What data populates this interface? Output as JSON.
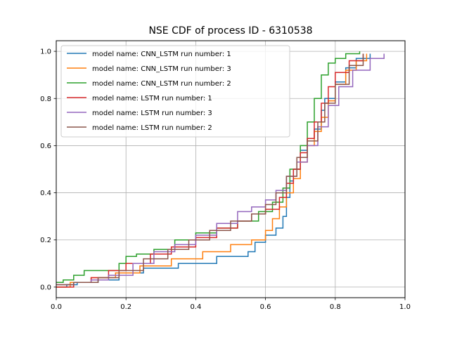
{
  "chart_data": {
    "type": "line",
    "title": "NSE CDF of process ID - 6310538",
    "xlabel": "",
    "ylabel": "",
    "xlim": [
      0.0,
      1.0
    ],
    "ylim": [
      -0.045,
      1.045
    ],
    "xticks": [
      "0.0",
      "0.2",
      "0.4",
      "0.6",
      "0.8",
      "1.0"
    ],
    "yticks": [
      "0.0",
      "0.2",
      "0.4",
      "0.6",
      "0.8",
      "1.0"
    ],
    "grid": true,
    "legend_position": "top-left",
    "series": [
      {
        "name": "model name: CNN_LSTM run number: 1",
        "color": "#1f77b4",
        "x": [
          0.0,
          0.03,
          0.06,
          0.12,
          0.18,
          0.25,
          0.35,
          0.46,
          0.55,
          0.57,
          0.6,
          0.63,
          0.65,
          0.66,
          0.67,
          0.68,
          0.7,
          0.72,
          0.74,
          0.76,
          0.77,
          0.8,
          0.83,
          0.86,
          0.9
        ],
        "y": [
          0.0,
          0.01,
          0.02,
          0.03,
          0.06,
          0.08,
          0.1,
          0.13,
          0.15,
          0.19,
          0.22,
          0.25,
          0.3,
          0.38,
          0.45,
          0.5,
          0.58,
          0.63,
          0.67,
          0.75,
          0.8,
          0.87,
          0.93,
          0.97,
          0.99
        ]
      },
      {
        "name": "model name: CNN_LSTM run number: 3",
        "color": "#ff7f0e",
        "x": [
          0.0,
          0.04,
          0.1,
          0.17,
          0.24,
          0.33,
          0.42,
          0.5,
          0.56,
          0.6,
          0.62,
          0.64,
          0.66,
          0.68,
          0.7,
          0.72,
          0.74,
          0.76,
          0.78,
          0.8,
          0.83,
          0.86,
          0.89
        ],
        "y": [
          0.0,
          0.02,
          0.04,
          0.06,
          0.09,
          0.12,
          0.15,
          0.18,
          0.2,
          0.24,
          0.29,
          0.34,
          0.4,
          0.46,
          0.53,
          0.6,
          0.66,
          0.72,
          0.79,
          0.86,
          0.92,
          0.96,
          0.99
        ]
      },
      {
        "name": "model name: CNN_LSTM run number: 2",
        "color": "#2ca02c",
        "x": [
          0.0,
          0.02,
          0.05,
          0.08,
          0.18,
          0.2,
          0.23,
          0.28,
          0.34,
          0.4,
          0.46,
          0.52,
          0.58,
          0.62,
          0.65,
          0.67,
          0.7,
          0.72,
          0.74,
          0.76,
          0.78,
          0.8,
          0.83,
          0.87
        ],
        "y": [
          0.02,
          0.03,
          0.05,
          0.07,
          0.1,
          0.13,
          0.14,
          0.16,
          0.2,
          0.23,
          0.25,
          0.28,
          0.32,
          0.36,
          0.42,
          0.5,
          0.6,
          0.7,
          0.8,
          0.9,
          0.95,
          0.97,
          0.99,
          1.0
        ]
      },
      {
        "name": "model name: LSTM run number: 1",
        "color": "#d62728",
        "x": [
          0.0,
          0.05,
          0.1,
          0.15,
          0.2,
          0.27,
          0.33,
          0.4,
          0.46,
          0.52,
          0.56,
          0.6,
          0.64,
          0.66,
          0.68,
          0.7,
          0.72,
          0.74,
          0.76,
          0.78,
          0.8,
          0.84,
          0.88
        ],
        "y": [
          0.0,
          0.02,
          0.04,
          0.07,
          0.1,
          0.14,
          0.17,
          0.21,
          0.25,
          0.28,
          0.31,
          0.33,
          0.38,
          0.44,
          0.5,
          0.57,
          0.63,
          0.7,
          0.78,
          0.85,
          0.91,
          0.96,
          0.99
        ]
      },
      {
        "name": "model name: LSTM run number: 3",
        "color": "#9467bd",
        "x": [
          0.0,
          0.05,
          0.1,
          0.15,
          0.22,
          0.28,
          0.34,
          0.4,
          0.46,
          0.52,
          0.56,
          0.6,
          0.63,
          0.66,
          0.69,
          0.72,
          0.75,
          0.78,
          0.81,
          0.85,
          0.9,
          0.94
        ],
        "y": [
          0.01,
          0.02,
          0.03,
          0.05,
          0.1,
          0.15,
          0.18,
          0.22,
          0.27,
          0.32,
          0.34,
          0.37,
          0.41,
          0.47,
          0.53,
          0.6,
          0.68,
          0.77,
          0.85,
          0.92,
          0.97,
          0.99
        ]
      },
      {
        "name": "model name: LSTM run number: 2",
        "color": "#8c564b",
        "x": [
          0.0,
          0.05,
          0.12,
          0.18,
          0.25,
          0.32,
          0.38,
          0.44,
          0.5,
          0.56,
          0.6,
          0.63,
          0.66,
          0.69,
          0.72,
          0.75,
          0.77,
          0.8,
          0.84,
          0.88
        ],
        "y": [
          0.01,
          0.02,
          0.04,
          0.07,
          0.12,
          0.16,
          0.2,
          0.24,
          0.28,
          0.31,
          0.35,
          0.4,
          0.47,
          0.55,
          0.62,
          0.7,
          0.78,
          0.86,
          0.94,
          0.99
        ]
      }
    ]
  }
}
